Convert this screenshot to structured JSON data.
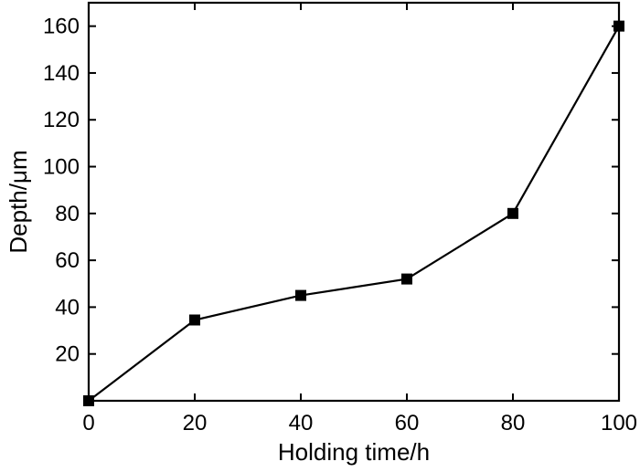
{
  "chart_data": {
    "type": "line",
    "title": "",
    "xlabel": "Holding time/h",
    "ylabel": "Depth/μm",
    "xlim": [
      0,
      100
    ],
    "ylim": [
      0,
      170
    ],
    "xticks": [
      0,
      20,
      40,
      60,
      80,
      100
    ],
    "yticks": [
      20,
      40,
      60,
      80,
      100,
      120,
      140,
      160
    ],
    "xtick_labels": [
      "0",
      "20",
      "40",
      "60",
      "80",
      "100"
    ],
    "ytick_labels": [
      "20",
      "40",
      "60",
      "80",
      "100",
      "120",
      "140",
      "160"
    ],
    "grid": false,
    "legend": "none",
    "marker": "square",
    "color": "#000000",
    "series": [
      {
        "x": [
          0,
          20,
          40,
          60,
          80,
          100
        ],
        "y": [
          0,
          34.5,
          45,
          52,
          80,
          160
        ]
      }
    ]
  }
}
